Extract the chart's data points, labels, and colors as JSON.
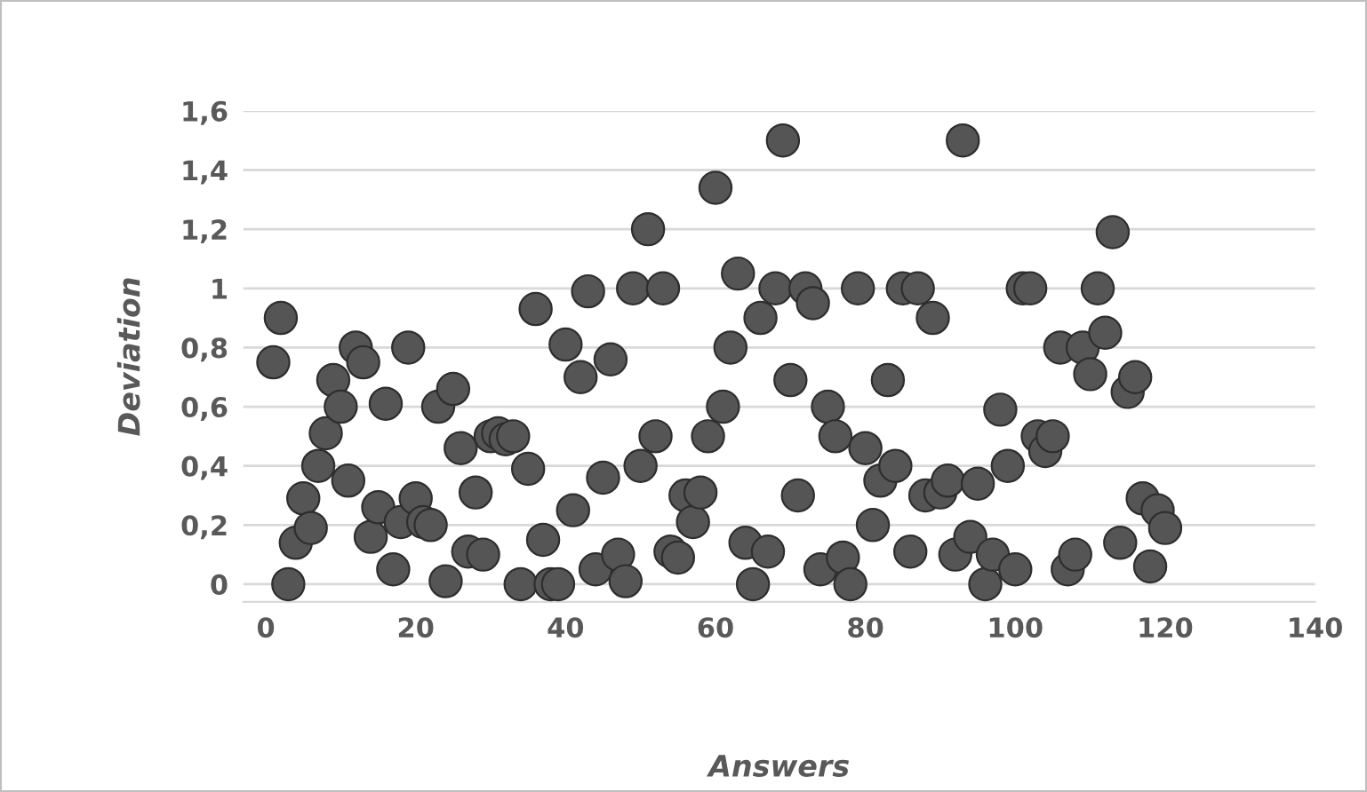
{
  "chart_data": {
    "type": "scatter",
    "xlabel": "Answers",
    "ylabel": "Deviation",
    "x": [
      1,
      2,
      3,
      4,
      5,
      6,
      7,
      8,
      9,
      10,
      11,
      12,
      13,
      14,
      15,
      16,
      17,
      18,
      19,
      20,
      21,
      22,
      23,
      24,
      25,
      26,
      27,
      28,
      29,
      30,
      31,
      32,
      33,
      34,
      35,
      36,
      37,
      38,
      39,
      40,
      41,
      42,
      43,
      44,
      45,
      46,
      47,
      48,
      49,
      50,
      51,
      52,
      53,
      54,
      55,
      56,
      57,
      58,
      59,
      60,
      61,
      62,
      63,
      64,
      65,
      66,
      67,
      68,
      69,
      70,
      71,
      72,
      73,
      74,
      75,
      76,
      77,
      78,
      79,
      80,
      81,
      82,
      83,
      84,
      85,
      86,
      87,
      88,
      89,
      90,
      91,
      92,
      93,
      94,
      95,
      96,
      97,
      98,
      99,
      100,
      101,
      102,
      103,
      104,
      105,
      106,
      107,
      108,
      109,
      110,
      111,
      112,
      113,
      114,
      115,
      116,
      117,
      118,
      119,
      120
    ],
    "series": [
      {
        "color": "#555555",
        "values": [
          0.75,
          0.9,
          0.0,
          0.14,
          0.29,
          0.19,
          0.4,
          0.51,
          0.69,
          0.6,
          0.35,
          0.8,
          0.75,
          0.16,
          0.26,
          0.61,
          0.05,
          0.21,
          0.8,
          0.29,
          0.21,
          0.2,
          0.6,
          0.01,
          0.66,
          0.46,
          0.11,
          0.31,
          0.1,
          0.5,
          0.51,
          0.49,
          0.5,
          0.0,
          0.39,
          0.93,
          0.15,
          0.0,
          0.0,
          0.81,
          0.25,
          0.7,
          0.99,
          0.05,
          0.36,
          0.76,
          0.1,
          0.01,
          1.0,
          0.4,
          1.2,
          0.5,
          1.0,
          0.11,
          0.09,
          0.3,
          0.21,
          0.31,
          0.5,
          1.34,
          0.6,
          0.8,
          1.05,
          0.14,
          0.0,
          0.9,
          0.11,
          1.0,
          1.5,
          0.69,
          0.3,
          1.0,
          0.95,
          0.05,
          0.6,
          0.5,
          0.09,
          0.0,
          1.0,
          0.46,
          0.2,
          0.35,
          0.69,
          0.4,
          1.0,
          0.11,
          1.0,
          0.3,
          0.9,
          0.31,
          0.35,
          0.1,
          1.5,
          0.16,
          0.34,
          0.0,
          0.1,
          0.59,
          0.4,
          0.05,
          1.0,
          1.0,
          0.5,
          0.45,
          0.5,
          0.8,
          0.05,
          0.1,
          0.8,
          0.71,
          1.0,
          0.85,
          1.19,
          0.14,
          0.65,
          0.7,
          0.29,
          0.06,
          0.25,
          0.19
        ]
      }
    ],
    "xlim": [
      -3,
      140
    ],
    "xticks": [
      0,
      20,
      40,
      60,
      80,
      100,
      120,
      140
    ],
    "ylim": [
      -0.06,
      1.6
    ],
    "yticks": [
      0,
      {
        "value": 0.2,
        "label": "0,2"
      },
      {
        "value": 0.4,
        "label": "0,4"
      },
      {
        "value": 0.6,
        "label": "0,6"
      },
      {
        "value": 0.8,
        "label": "0,8"
      },
      1,
      {
        "value": 1.2,
        "label": "1,2"
      },
      {
        "value": 1.4,
        "label": "1,4"
      },
      {
        "value": 1.6,
        "label": "1,6"
      }
    ],
    "grid": "y",
    "marker": "circle"
  }
}
